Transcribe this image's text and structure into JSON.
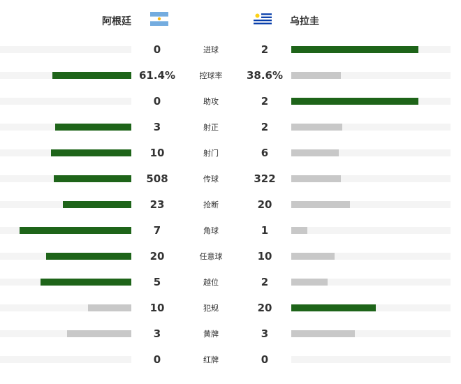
{
  "teams": {
    "home": {
      "name": "阿根廷",
      "flag": "argentina-flag"
    },
    "away": {
      "name": "乌拉圭",
      "flag": "uruguay-flag"
    }
  },
  "colors": {
    "leader": "#1e6419",
    "trailer": "#c8c8c8",
    "track": "#f4f4f4"
  },
  "stats": [
    {
      "label": "进球",
      "home": "0",
      "away": "2",
      "home_share": 0.0,
      "away_share": 0.8,
      "leader": "away"
    },
    {
      "label": "控球率",
      "home": "61.4%",
      "away": "38.6%",
      "home_share": 0.6,
      "away_share": 0.31,
      "leader": "home"
    },
    {
      "label": "助攻",
      "home": "0",
      "away": "2",
      "home_share": 0.0,
      "away_share": 0.8,
      "leader": "away"
    },
    {
      "label": "射正",
      "home": "3",
      "away": "2",
      "home_share": 0.58,
      "away_share": 0.32,
      "leader": "home"
    },
    {
      "label": "射门",
      "home": "10",
      "away": "6",
      "home_share": 0.61,
      "away_share": 0.3,
      "leader": "home"
    },
    {
      "label": "传球",
      "home": "508",
      "away": "322",
      "home_share": 0.59,
      "away_share": 0.31,
      "leader": "home"
    },
    {
      "label": "抢断",
      "home": "23",
      "away": "20",
      "home_share": 0.52,
      "away_share": 0.37,
      "leader": "home"
    },
    {
      "label": "角球",
      "home": "7",
      "away": "1",
      "home_share": 0.85,
      "away_share": 0.1,
      "leader": "home"
    },
    {
      "label": "任意球",
      "home": "20",
      "away": "10",
      "home_share": 0.65,
      "away_share": 0.27,
      "leader": "home"
    },
    {
      "label": "越位",
      "home": "5",
      "away": "2",
      "home_share": 0.69,
      "away_share": 0.23,
      "leader": "home"
    },
    {
      "label": "犯规",
      "home": "10",
      "away": "20",
      "home_share": 0.33,
      "away_share": 0.53,
      "leader": "away"
    },
    {
      "label": "黄牌",
      "home": "3",
      "away": "3",
      "home_share": 0.49,
      "away_share": 0.4,
      "leader": "none"
    },
    {
      "label": "红牌",
      "home": "0",
      "away": "0",
      "home_share": 0.0,
      "away_share": 0.0,
      "leader": "none"
    }
  ]
}
